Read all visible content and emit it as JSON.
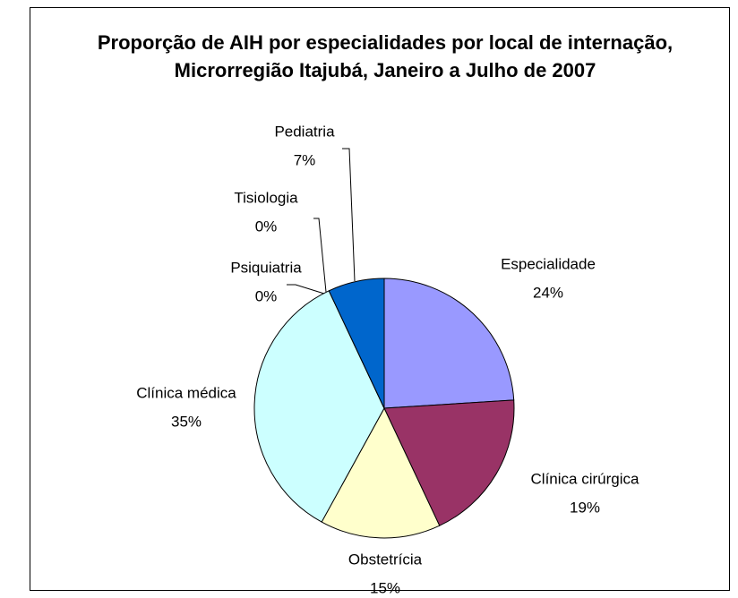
{
  "chart_data": {
    "type": "pie",
    "title": "Proporção de AIH por especialidades por local de internação, Microrregião Itajubá, Janeiro a Julho de 2007",
    "categories": [
      "Especialidade",
      "Clínica cirúrgica",
      "Obstetrícia",
      "Clínica médica",
      "Psiquiatria",
      "Tisiologia",
      "Pediatria"
    ],
    "values": [
      24,
      19,
      15,
      35,
      0,
      0,
      7
    ],
    "value_labels": [
      "24%",
      "19%",
      "15%",
      "35%",
      "0%",
      "0%",
      "7%"
    ],
    "colors": [
      "#9999ff",
      "#993366",
      "#ffffcc",
      "#ccffff",
      "#660066",
      "#ff8080",
      "#0066cc"
    ]
  }
}
